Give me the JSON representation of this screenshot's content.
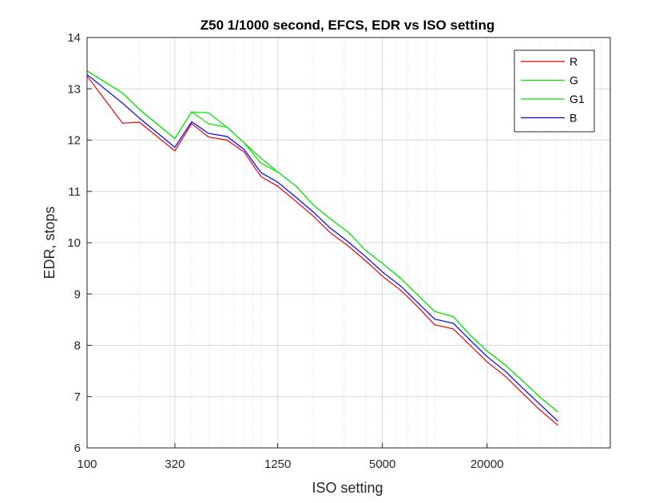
{
  "chart_data": {
    "type": "line",
    "title": "Z50 1/1000 second, EFCS, EDR vs ISO setting",
    "xlabel": "ISO setting",
    "ylabel": "EDR, stops",
    "xscale": "log",
    "xlim": [
      100,
      102400
    ],
    "ylim": [
      6,
      14
    ],
    "xticks": [
      100,
      320,
      1250,
      5000,
      20000
    ],
    "xtick_labels": [
      "100",
      "320",
      "1250",
      "5000",
      "20000"
    ],
    "yticks": [
      6,
      7,
      8,
      9,
      10,
      11,
      12,
      13,
      14
    ],
    "ytick_labels": [
      "6",
      "7",
      "8",
      "9",
      "10",
      "11",
      "12",
      "13",
      "14"
    ],
    "grid": true,
    "legend_position": "top-right",
    "x": [
      100,
      160,
      200,
      320,
      400,
      500,
      640,
      800,
      1000,
      1250,
      1600,
      2000,
      2500,
      3200,
      4000,
      5000,
      6400,
      8000,
      10000,
      12800,
      16000,
      20000,
      25600,
      32000,
      40000,
      51200
    ],
    "series": [
      {
        "name": "R",
        "color": "#e8000b",
        "values": [
          13.25,
          12.33,
          12.35,
          11.79,
          12.32,
          12.06,
          12.0,
          11.77,
          11.29,
          11.1,
          10.8,
          10.52,
          10.2,
          9.93,
          9.65,
          9.35,
          9.07,
          8.75,
          8.4,
          8.32,
          8.0,
          7.68,
          7.39,
          7.07,
          6.75,
          6.44
        ]
      },
      {
        "name": "G",
        "color": "#00e600",
        "values": [
          13.35,
          12.92,
          12.6,
          12.03,
          12.55,
          12.53,
          12.25,
          11.95,
          11.55,
          11.38,
          11.1,
          10.74,
          10.47,
          10.2,
          9.85,
          9.6,
          9.3,
          8.98,
          8.66,
          8.56,
          8.2,
          7.89,
          7.61,
          7.31,
          7.0,
          6.7
        ]
      },
      {
        "name": "G1",
        "color": "#00e600",
        "values": [
          13.35,
          12.92,
          12.6,
          12.03,
          12.55,
          12.32,
          12.25,
          11.95,
          11.65,
          11.38,
          11.1,
          10.74,
          10.47,
          10.2,
          9.85,
          9.6,
          9.3,
          8.98,
          8.66,
          8.56,
          8.2,
          7.89,
          7.61,
          7.31,
          7.0,
          6.7
        ]
      },
      {
        "name": "B",
        "color": "#0000ff",
        "values": [
          13.28,
          12.72,
          12.43,
          11.86,
          12.36,
          12.13,
          12.07,
          11.82,
          11.37,
          11.18,
          10.88,
          10.6,
          10.29,
          10.01,
          9.73,
          9.43,
          9.15,
          8.83,
          8.51,
          8.43,
          8.1,
          7.78,
          7.49,
          7.17,
          6.86,
          6.52
        ]
      }
    ]
  }
}
